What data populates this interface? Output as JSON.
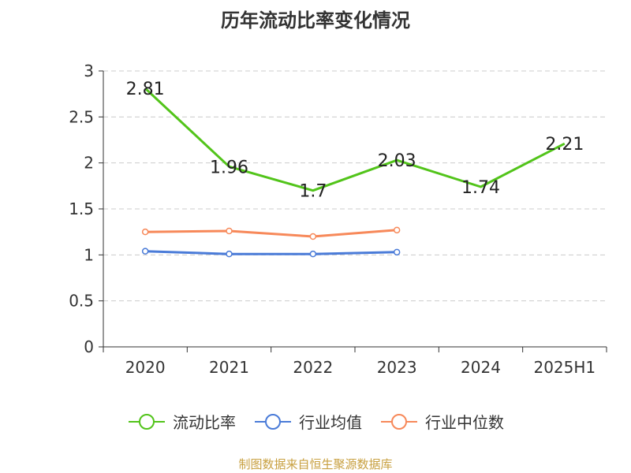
{
  "title": "历年流动比率变化情况",
  "source": "制图数据来自恒生聚源数据库",
  "colors": {
    "流动比率": "#52c41a",
    "行业均值": "#4a7bd8",
    "行业中位数": "#f7895a",
    "grid": "#cccccc",
    "axis": "#333333",
    "source": "#c8a040"
  },
  "chart_data": {
    "type": "line",
    "title": "历年流动比率变化情况",
    "categories": [
      "2020",
      "2021",
      "2022",
      "2023",
      "2024",
      "2025H1"
    ],
    "ylim": [
      0,
      3
    ],
    "yticks": [
      0,
      0.5,
      1,
      1.5,
      2,
      2.5,
      3
    ],
    "grid": "horizontal dashed",
    "legend_position": "bottom",
    "series": [
      {
        "name": "流动比率",
        "values": [
          2.81,
          1.96,
          1.7,
          2.03,
          1.74,
          2.21
        ],
        "labels": true,
        "markers": false
      },
      {
        "name": "行业均值",
        "values": [
          1.04,
          1.01,
          1.01,
          1.03,
          null,
          null
        ],
        "labels": false,
        "markers": true
      },
      {
        "name": "行业中位数",
        "values": [
          1.25,
          1.26,
          1.2,
          1.27,
          null,
          null
        ],
        "labels": false,
        "markers": true
      }
    ]
  }
}
